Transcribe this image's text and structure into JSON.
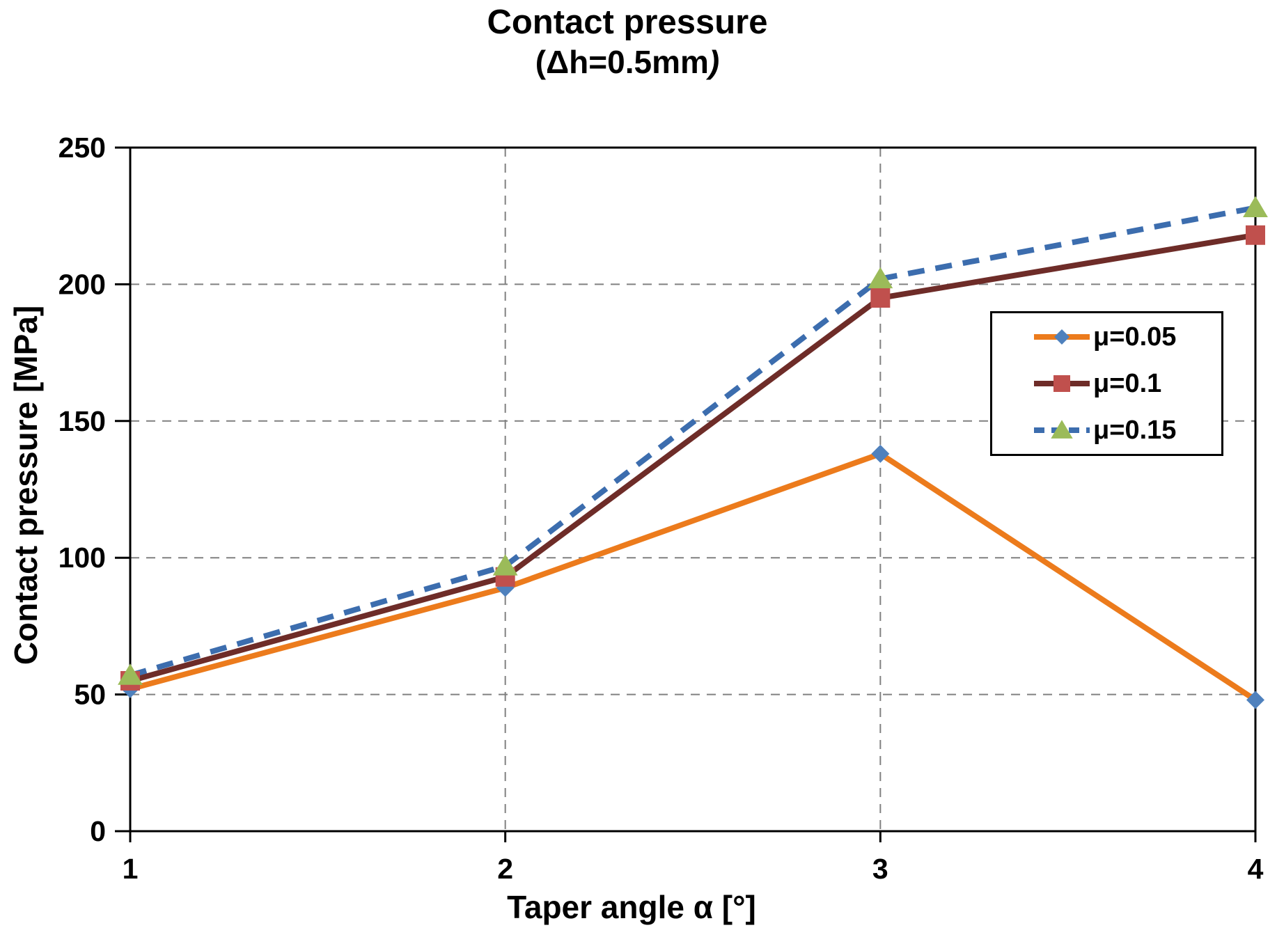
{
  "chart_data": {
    "type": "line",
    "title": "Contact pressure",
    "subtitle_open": "(Δh=0.5mm",
    "subtitle_close": ")",
    "xlabel": "Taper angle α [°]",
    "ylabel": "Contact pressure [MPa]",
    "x": [
      1,
      2,
      3,
      4
    ],
    "xticks": [
      "1",
      "2",
      "3",
      "4"
    ],
    "yticks": [
      "0",
      "50",
      "100",
      "150",
      "200",
      "250"
    ],
    "ytick_values": [
      0,
      50,
      100,
      150,
      200,
      250
    ],
    "xlim": [
      1,
      4
    ],
    "ylim": [
      0,
      250
    ],
    "grid": "dashed",
    "legend_position": "inside-right",
    "series": [
      {
        "name": "μ=0.05",
        "values": [
          52,
          89,
          138,
          48
        ],
        "line_color": "#EC7B1C",
        "line_style": "solid",
        "marker": "diamond",
        "marker_color": "#4F81BD"
      },
      {
        "name": "μ=0.1",
        "values": [
          55,
          93,
          195,
          218
        ],
        "line_color": "#6E2C28",
        "line_style": "solid",
        "marker": "square",
        "marker_color": "#C0504D"
      },
      {
        "name": "μ=0.15",
        "values": [
          57,
          97,
          202,
          228
        ],
        "line_color": "#3C6DAE",
        "line_style": "dashed",
        "marker": "triangle",
        "marker_color": "#9BBB59"
      }
    ],
    "colors": {
      "grid": "#808080",
      "axis": "#000000",
      "background": "#FFFFFF"
    }
  }
}
